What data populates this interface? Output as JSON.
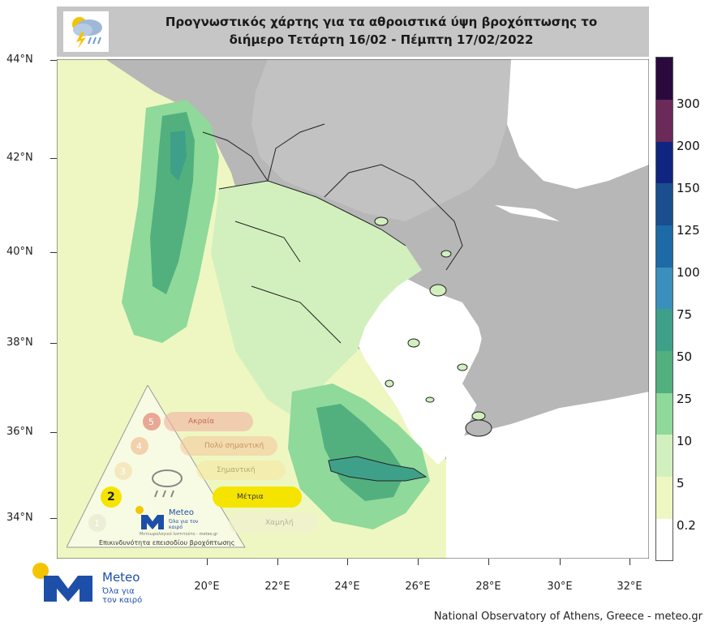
{
  "header": {
    "title_line1": "Προγνωστικός χάρτης για τα αθροιστικά ύψη βροχόπτωσης το",
    "title_line2": "διήμερο Τετάρτη 16/02 - Πέμπτη 17/02/2022",
    "icon": "thunderstorm-rain-icon"
  },
  "axes": {
    "lat_labels": [
      "44°N",
      "42°N",
      "40°N",
      "38°N",
      "36°N",
      "34°N"
    ],
    "lon_labels": [
      "20°E",
      "22°E",
      "24°E",
      "26°E",
      "28°E",
      "30°E",
      "32°E"
    ]
  },
  "legend": {
    "labels": [
      "300",
      "200",
      "150",
      "125",
      "100",
      "75",
      "50",
      "25",
      "10",
      "5",
      "0.2"
    ],
    "colors": [
      "#2a0a3d",
      "#6b2a5a",
      "#10257f",
      "#1a4e8e",
      "#1d6aa6",
      "#3a8fbc",
      "#3fa08a",
      "#52b07e",
      "#8fd99a",
      "#d2f0be",
      "#eef7c2",
      "#ffffff"
    ]
  },
  "risk_scale": {
    "levels": [
      "1",
      "2",
      "3",
      "4",
      "5"
    ],
    "active_level": "2",
    "active_label": "Μέτρια",
    "level_labels": [
      "Χαμηλή",
      "Μέτρια",
      "Σημαντική",
      "Πολύ σημαντική",
      "Ακραία"
    ],
    "caption": "Επικινδυνότητα επεισοδίου βροχόπτωσης",
    "brand": "Meteo",
    "brand_tag": "Όλα για τον καιρό",
    "small_text": "Μετεωρολογικό Ινστιτούτο - meteo.gr"
  },
  "logo": {
    "name": "Meteo",
    "tagline": "Όλα για τον καιρό"
  },
  "credit": "National Observatory of Athens, Greece - meteo.gr",
  "colors": {
    "land_gray": "#b7b7b7",
    "sea_low": "#eef7c2",
    "rain_light": "#d2f0be",
    "rain_mid": "#8fd99a",
    "rain_heavy": "#52b07e",
    "rain_very_heavy": "#3fa08a",
    "brand_blue": "#1e4fa8",
    "brand_yellow": "#f5c400"
  }
}
